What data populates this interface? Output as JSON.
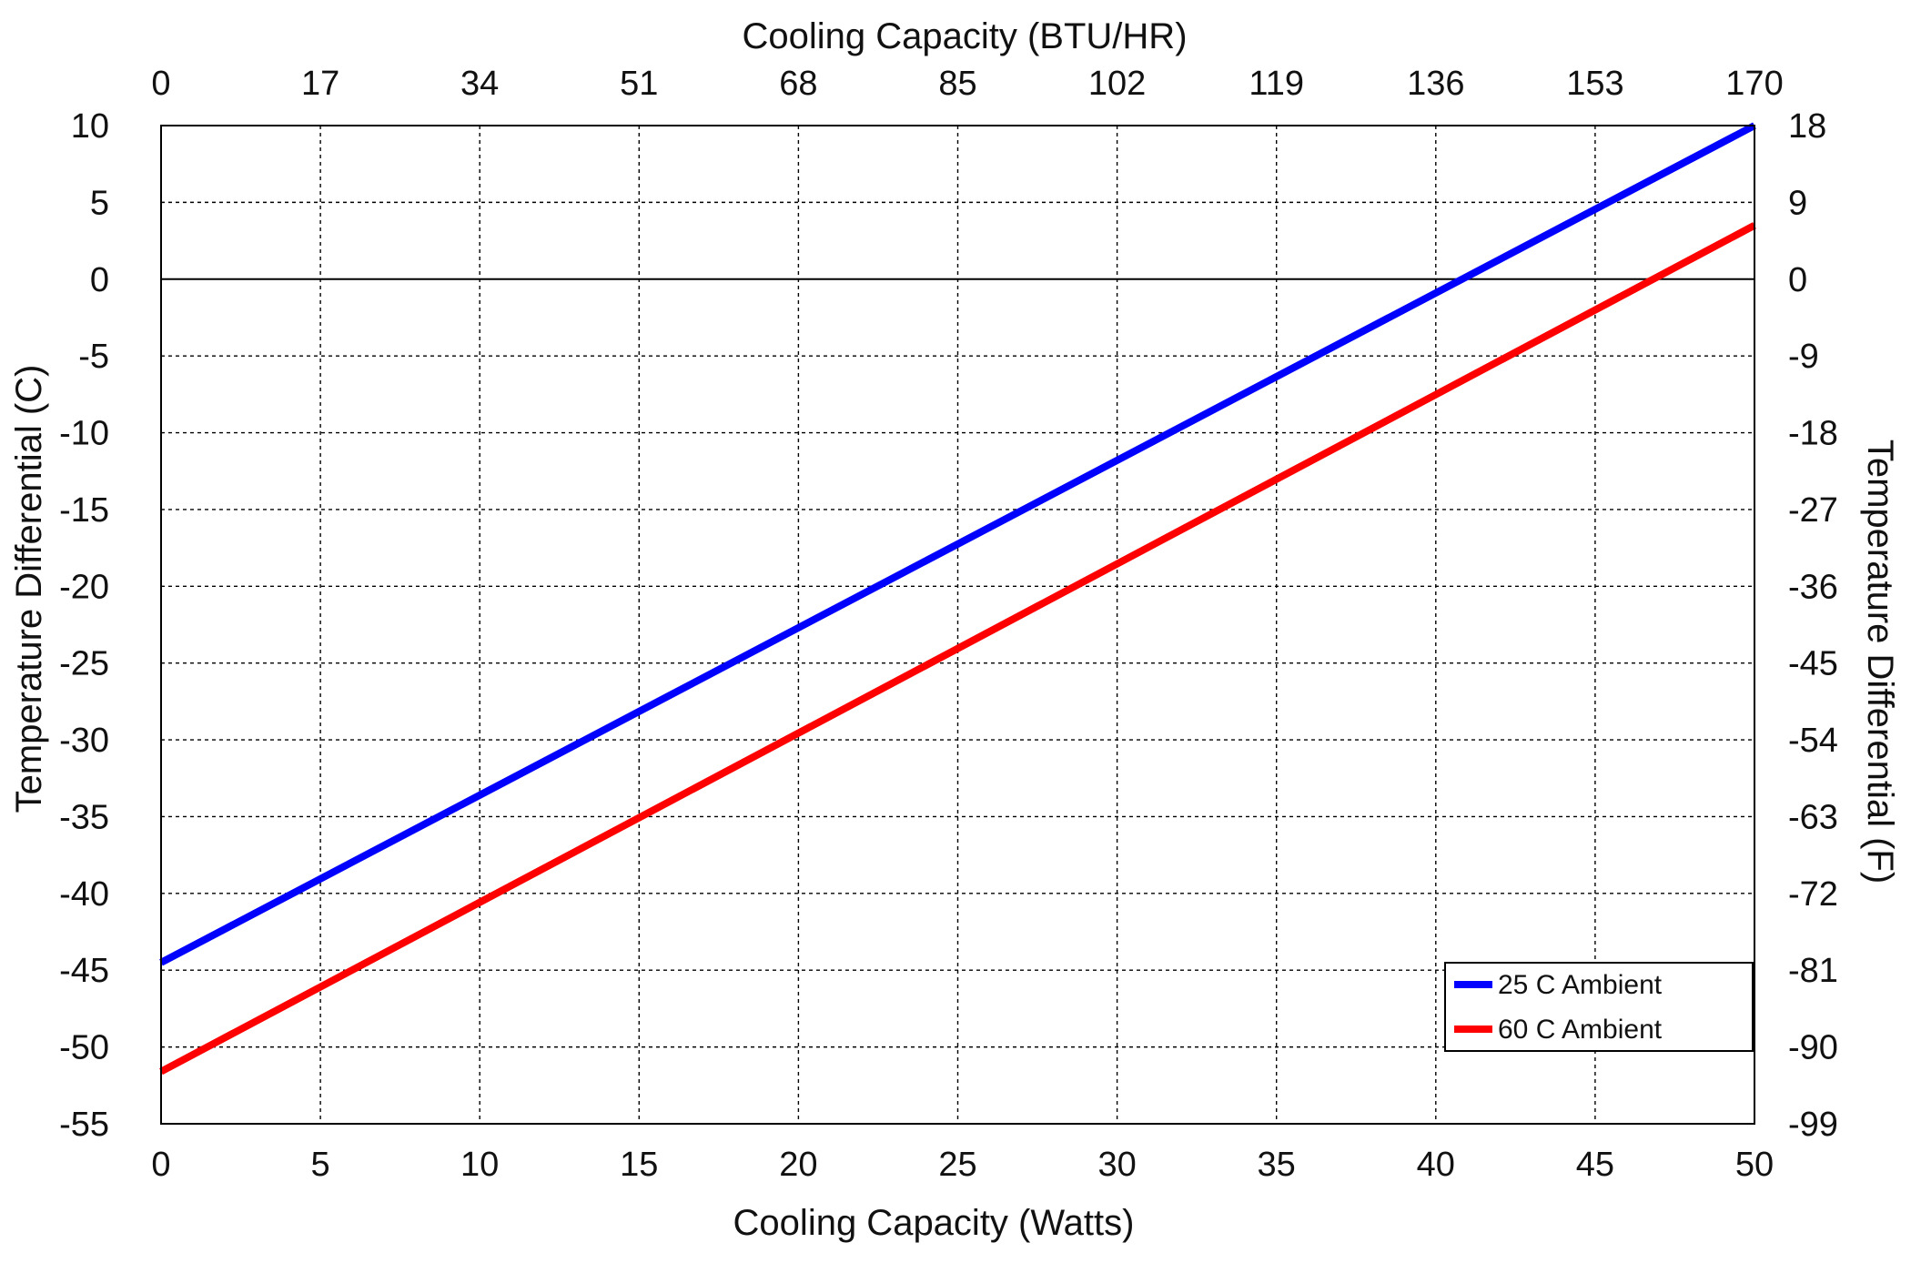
{
  "chart_data": {
    "type": "line",
    "x": [
      0,
      50
    ],
    "series": [
      {
        "name": "25 C Ambient",
        "color": "#0000ff",
        "values": [
          -44.5,
          10
        ]
      },
      {
        "name": "60 C Ambient",
        "color": "#ff0000",
        "values": [
          -51.6,
          3.5
        ]
      }
    ],
    "xlabel": "Cooling Capacity (Watts)",
    "x2label": "Cooling Capacity (BTU/HR)",
    "ylabel": "Temperature Differential (C)",
    "y2label": "Temperature Differential (F)",
    "xlim": [
      0,
      50
    ],
    "ylim": [
      -55,
      10
    ],
    "x_ticks": [
      "0",
      "5",
      "10",
      "15",
      "20",
      "25",
      "30",
      "35",
      "40",
      "45",
      "50"
    ],
    "x2_ticks": [
      "0",
      "17",
      "34",
      "51",
      "68",
      "85",
      "102",
      "119",
      "136",
      "153",
      "170"
    ],
    "y_ticks": [
      "10",
      "5",
      "0",
      "-5",
      "-10",
      "-15",
      "-20",
      "-25",
      "-30",
      "-35",
      "-40",
      "-45",
      "-50",
      "-55"
    ],
    "y2_ticks": [
      "18",
      "9",
      "0",
      "-9",
      "-18",
      "-27",
      "-36",
      "-45",
      "-54",
      "-63",
      "-72",
      "-81",
      "-90",
      "-99"
    ],
    "grid": true,
    "legend_position": "bottom-right"
  }
}
